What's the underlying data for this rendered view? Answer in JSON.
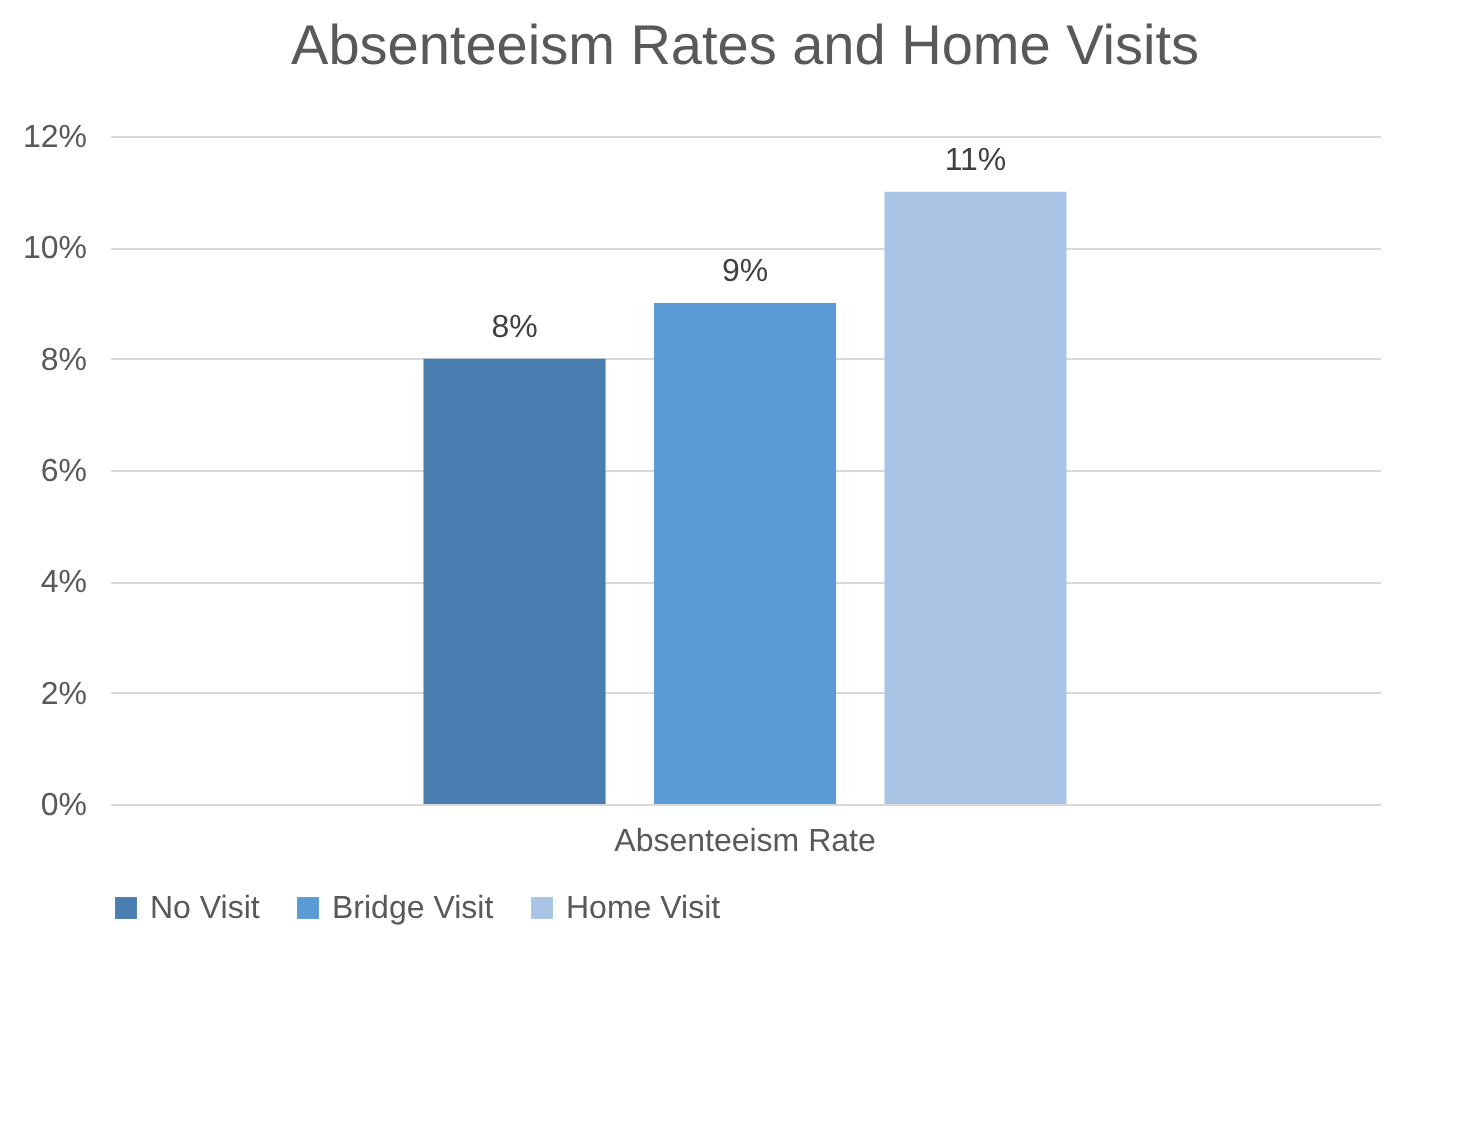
{
  "chart_data": {
    "type": "bar",
    "title": "Absenteeism Rates and Home Visits",
    "categories": [
      "Absenteeism Rate"
    ],
    "series": [
      {
        "name": "No Visit",
        "color": "#4a7eb0",
        "values": [
          8
        ],
        "value_labels": [
          "8%"
        ]
      },
      {
        "name": "Bridge Visit",
        "color": "#5b9bd5",
        "values": [
          9
        ],
        "value_labels": [
          "9%"
        ]
      },
      {
        "name": "Home Visit",
        "color": "#a9c4e4",
        "values": [
          11
        ],
        "value_labels": [
          "11%"
        ]
      }
    ],
    "ylim": [
      0,
      12
    ],
    "yticks": [
      {
        "value": 0,
        "label": "0%"
      },
      {
        "value": 2,
        "label": "2%"
      },
      {
        "value": 4,
        "label": "4%"
      },
      {
        "value": 6,
        "label": "6%"
      },
      {
        "value": 8,
        "label": "8%"
      },
      {
        "value": 10,
        "label": "10%"
      },
      {
        "value": 12,
        "label": "12%"
      }
    ],
    "grid": "y",
    "legend": "bottom"
  }
}
